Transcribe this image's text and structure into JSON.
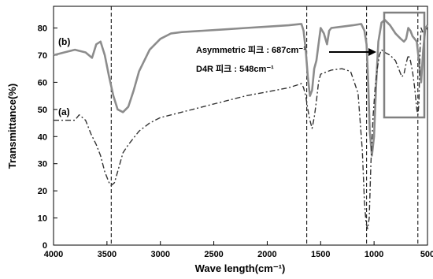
{
  "chart_data": {
    "type": "line",
    "xlabel": "Wave length(cm⁻¹)",
    "ylabel": "Transmittance(%)",
    "xlim": [
      4000,
      500
    ],
    "ylim": [
      0,
      88
    ],
    "x_reversed": true,
    "xticks": [
      4000,
      3500,
      3000,
      2500,
      2000,
      1500,
      1000,
      500
    ],
    "yticks": [
      0,
      10,
      20,
      30,
      40,
      50,
      60,
      70,
      80
    ],
    "grid": false,
    "reference_lines_x": [
      3460,
      1630,
      1070,
      590
    ],
    "annotations": [
      {
        "text": "Asymmetric 피크 : 687cm⁻¹"
      },
      {
        "text": "D4R 피크 : 548cm⁻¹"
      }
    ],
    "series": [
      {
        "name": "(b)",
        "color": "#8c8c8c",
        "style": "solid",
        "x": [
          4000,
          3900,
          3800,
          3700,
          3640,
          3600,
          3560,
          3520,
          3480,
          3440,
          3400,
          3350,
          3300,
          3250,
          3200,
          3100,
          3000,
          2900,
          2800,
          2600,
          2400,
          2200,
          2000,
          1800,
          1680,
          1660,
          1640,
          1620,
          1600,
          1580,
          1560,
          1540,
          1520,
          1500,
          1470,
          1440,
          1420,
          1400,
          1300,
          1200,
          1120,
          1090,
          1070,
          1055,
          1040,
          1020,
          1000,
          980,
          960,
          930,
          900,
          850,
          800,
          750,
          720,
          700,
          680,
          660,
          640,
          620,
          600,
          580,
          560,
          540,
          520,
          500
        ],
        "y": [
          70,
          71,
          72,
          71,
          69,
          74,
          75,
          70,
          62,
          55,
          50,
          49,
          51,
          57,
          64,
          72,
          76,
          78,
          78.5,
          79,
          79.5,
          80,
          80.5,
          81,
          81.5,
          79,
          72,
          62,
          55,
          57,
          65,
          68,
          74,
          80,
          78,
          74,
          79,
          80,
          80.5,
          81,
          81.5,
          79,
          74,
          60,
          42,
          33,
          40,
          60,
          75,
          82,
          83,
          81,
          78,
          76,
          75,
          76,
          80,
          79,
          77,
          76,
          75,
          68,
          60,
          72,
          80,
          81
        ]
      },
      {
        "name": "(a)",
        "color": "#333333",
        "style": "dashdot",
        "x": [
          4000,
          3900,
          3800,
          3760,
          3700,
          3650,
          3600,
          3560,
          3520,
          3480,
          3460,
          3430,
          3400,
          3350,
          3300,
          3200,
          3100,
          3000,
          2800,
          2600,
          2400,
          2200,
          2000,
          1800,
          1680,
          1660,
          1640,
          1620,
          1600,
          1580,
          1560,
          1540,
          1520,
          1500,
          1400,
          1300,
          1220,
          1150,
          1110,
          1090,
          1075,
          1060,
          1045,
          1030,
          1010,
          990,
          970,
          950,
          930,
          900,
          850,
          800,
          760,
          740,
          720,
          700,
          680,
          660,
          640,
          620,
          600,
          590,
          580,
          570,
          560,
          540,
          520,
          500
        ],
        "y": [
          46,
          46,
          46,
          48,
          46,
          41,
          37,
          33,
          27,
          23,
          22,
          23,
          27,
          34,
          37,
          42,
          45,
          47,
          49,
          51,
          53,
          55,
          56.5,
          58,
          59.5,
          58,
          55,
          50,
          46,
          43,
          47,
          53,
          60,
          63,
          64.5,
          65,
          64,
          56,
          35,
          16,
          8,
          6,
          10,
          30,
          47,
          58,
          65,
          70,
          72,
          71,
          70,
          68,
          64,
          62,
          63,
          67,
          70,
          68,
          64,
          58,
          50,
          48,
          52,
          72,
          80,
          78,
          79,
          80
        ]
      }
    ]
  }
}
